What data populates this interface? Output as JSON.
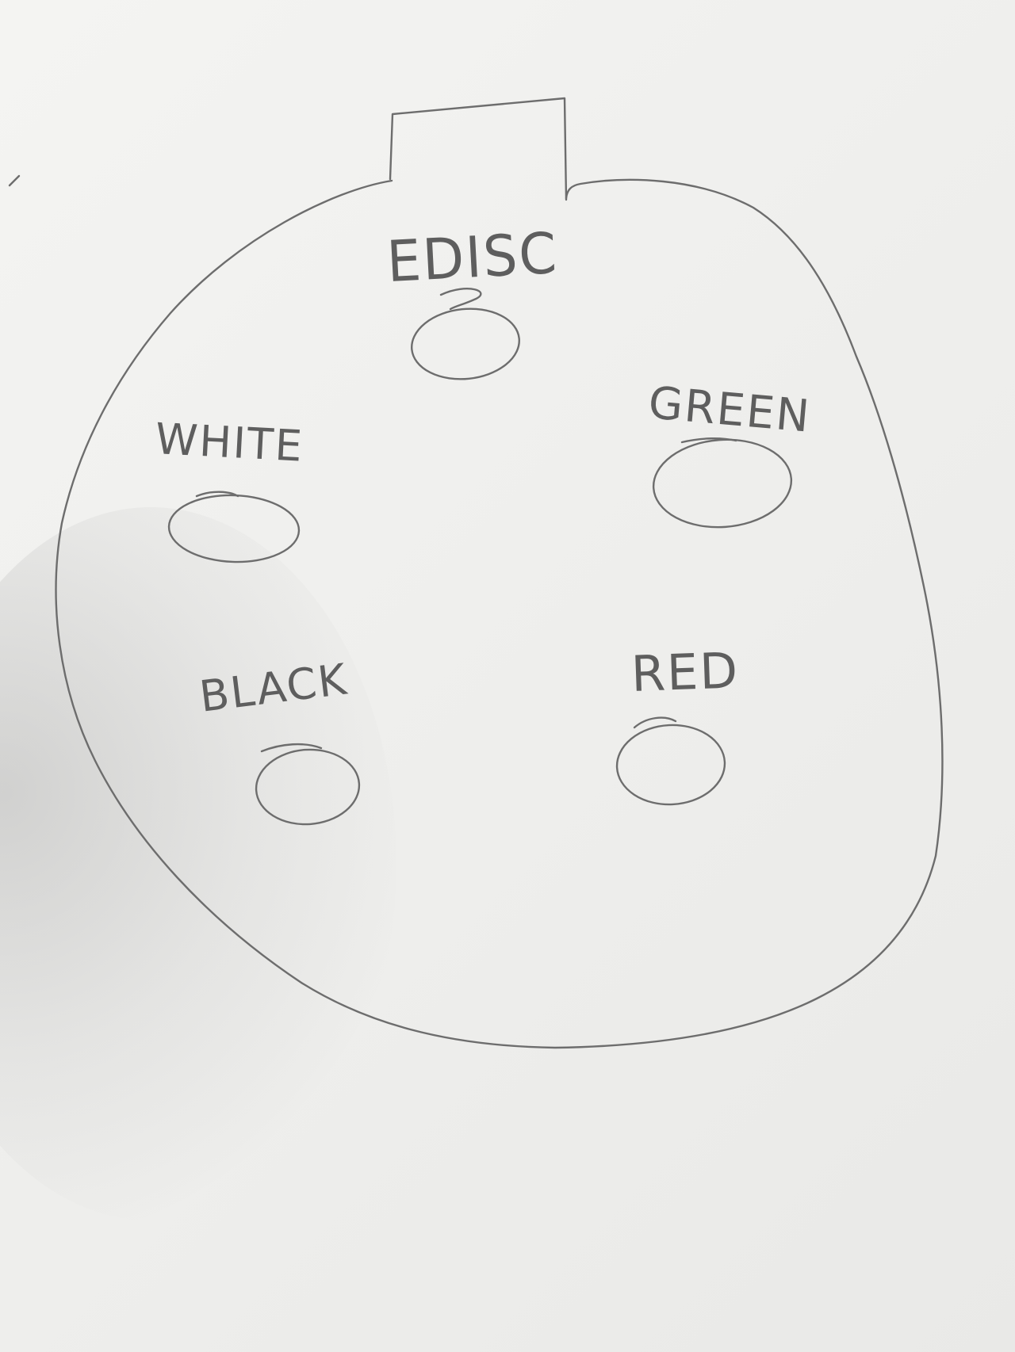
{
  "diagram": {
    "key_tab": "",
    "pins": [
      {
        "id": "edisc",
        "label": "EDISC"
      },
      {
        "id": "green",
        "label": "GREEN"
      },
      {
        "id": "white",
        "label": "WHITE"
      },
      {
        "id": "black",
        "label": "BLACK"
      },
      {
        "id": "red",
        "label": "RED"
      }
    ]
  },
  "colors": {
    "paper": "#f2f2f0",
    "pencil": "#6d6d6d"
  }
}
